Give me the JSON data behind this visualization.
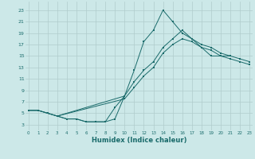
{
  "bg_color": "#cce8e8",
  "grid_color": "#b0cccc",
  "line_color": "#1a6b6b",
  "xlabel": "Humidex (Indice chaleur)",
  "ylabel_ticks": [
    3,
    5,
    7,
    9,
    11,
    13,
    15,
    17,
    19,
    21,
    23
  ],
  "xlabel_ticks": [
    0,
    1,
    2,
    3,
    4,
    5,
    6,
    7,
    8,
    9,
    10,
    11,
    12,
    13,
    14,
    15,
    16,
    17,
    18,
    19,
    20,
    21,
    22,
    23
  ],
  "xlim": [
    -0.3,
    23.3
  ],
  "ylim": [
    2.0,
    24.5
  ],
  "line1_x": [
    0,
    1,
    2,
    3,
    4,
    5,
    6,
    7,
    8,
    9,
    10,
    11,
    12,
    13,
    14,
    15,
    16,
    17,
    18,
    19,
    20,
    21
  ],
  "line1_y": [
    5.5,
    5.5,
    5.0,
    4.5,
    4.0,
    4.0,
    3.5,
    3.5,
    3.5,
    4.0,
    8.0,
    12.5,
    17.5,
    19.5,
    23.0,
    21.0,
    19.0,
    18.0,
    16.5,
    15.0,
    15.0,
    15.0
  ],
  "line2_x": [
    0,
    1,
    2,
    3,
    10,
    11,
    12,
    13,
    14,
    15,
    16,
    17,
    18,
    19,
    20,
    21,
    22,
    23
  ],
  "line2_y": [
    5.5,
    5.5,
    5.0,
    4.5,
    8.0,
    10.5,
    12.5,
    14.0,
    16.5,
    18.0,
    19.5,
    18.0,
    17.0,
    16.5,
    15.5,
    15.0,
    14.5,
    14.0
  ],
  "line3_x": [
    0,
    1,
    2,
    3,
    10,
    11,
    12,
    13,
    14,
    15,
    16,
    17,
    18,
    19,
    20,
    21,
    22,
    23
  ],
  "line3_y": [
    5.5,
    5.5,
    5.0,
    4.5,
    7.5,
    9.5,
    11.5,
    13.0,
    15.5,
    17.0,
    18.0,
    17.5,
    16.5,
    16.0,
    15.0,
    14.5,
    14.0,
    13.5
  ],
  "line4_x": [
    3,
    4,
    5,
    6,
    7,
    8,
    9,
    10
  ],
  "line4_y": [
    4.5,
    4.0,
    4.0,
    3.5,
    3.5,
    3.5,
    6.0,
    8.0
  ]
}
